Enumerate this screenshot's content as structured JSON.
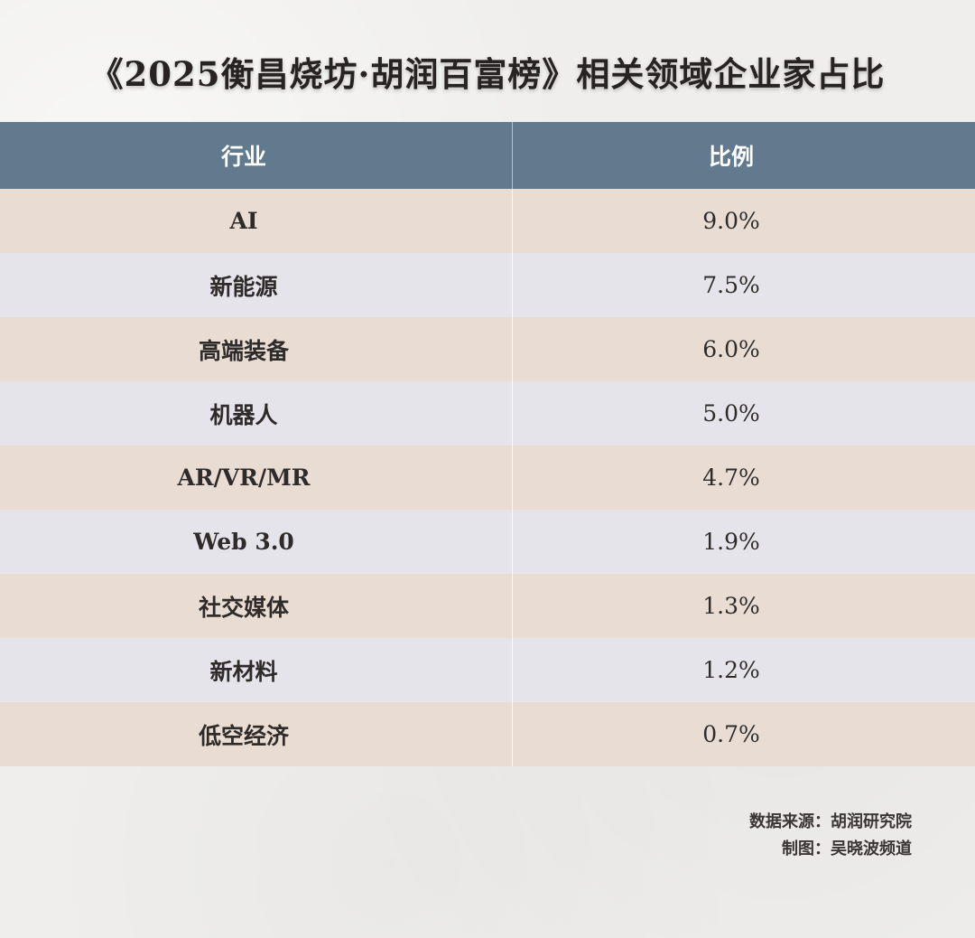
{
  "title": "《2025衡昌烧坊·胡润百富榜》相关领域企业家占比",
  "chart_data": {
    "type": "table",
    "columns": [
      "行业",
      "比例"
    ],
    "rows": [
      {
        "industry": "AI",
        "ratio": "9.0%",
        "value": 9.0
      },
      {
        "industry": "新能源",
        "ratio": "7.5%",
        "value": 7.5
      },
      {
        "industry": "高端装备",
        "ratio": "6.0%",
        "value": 6.0
      },
      {
        "industry": "机器人",
        "ratio": "5.0%",
        "value": 5.0
      },
      {
        "industry": "AR/VR/MR",
        "ratio": "4.7%",
        "value": 4.7
      },
      {
        "industry": "Web 3.0",
        "ratio": "1.9%",
        "value": 1.9
      },
      {
        "industry": "社交媒体",
        "ratio": "1.3%",
        "value": 1.3
      },
      {
        "industry": "新材料",
        "ratio": "1.2%",
        "value": 1.2
      },
      {
        "industry": "低空经济",
        "ratio": "0.7%",
        "value": 0.7
      }
    ]
  },
  "source": {
    "data_source": "数据来源：胡润研究院",
    "made_by": "制图：吴晓波频道"
  },
  "colors": {
    "header": "#627a8e",
    "row_odd": "#e9ddd3",
    "row_even": "#e4e4ea",
    "background": "#efeeec"
  }
}
